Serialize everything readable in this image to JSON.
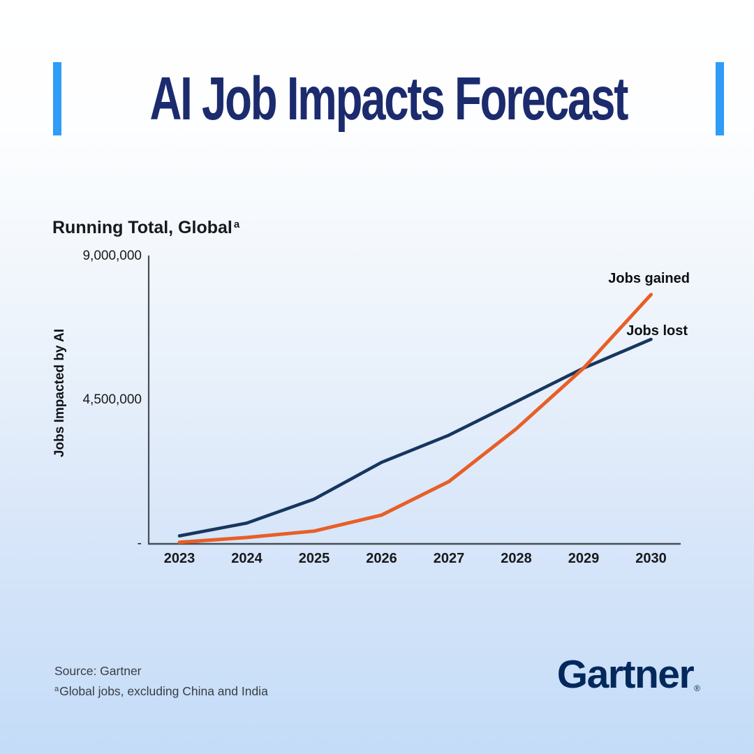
{
  "title": "AI Job Impacts Forecast",
  "subtitle": {
    "text": "Running Total, Global",
    "superscript": "a"
  },
  "footer": {
    "source": "Source: Gartner",
    "footnote_superscript": "a",
    "footnote": "Global jobs, excluding China and India",
    "logo": "Gartner",
    "logo_registered": "®"
  },
  "colors": {
    "accent_bar": "#2F9CF5",
    "title_navy": "#1B2B6D",
    "logo_navy": "#02285C",
    "jobs_gained_line": "#E75F27",
    "jobs_lost_line": "#16365F",
    "axis": "#494E54",
    "background_bottom": "#C4DCF8"
  },
  "chart_data": {
    "type": "line",
    "title": "Running Total, Global",
    "ylabel": "Jobs Impacted by AI",
    "x": [
      "2023",
      "2024",
      "2025",
      "2026",
      "2027",
      "2028",
      "2029",
      "2030"
    ],
    "series": [
      {
        "name": "Jobs gained",
        "color": "#E75F27",
        "values": [
          50000,
          200000,
          400000,
          900000,
          1950000,
          3600000,
          5500000,
          7800000
        ]
      },
      {
        "name": "Jobs lost",
        "color": "#16365F",
        "values": [
          250000,
          650000,
          1400000,
          2550000,
          3400000,
          4450000,
          5500000,
          6400000
        ]
      }
    ],
    "ylim": [
      0,
      9000000
    ],
    "ytick_labels": [
      "9,000,000",
      "4,500,000",
      "-"
    ],
    "ytick_values": [
      9000000,
      4500000,
      0
    ],
    "grid": false,
    "legend_position": "end-of-line-labels",
    "annotations": [
      "Jobs gained",
      "Jobs lost"
    ]
  }
}
